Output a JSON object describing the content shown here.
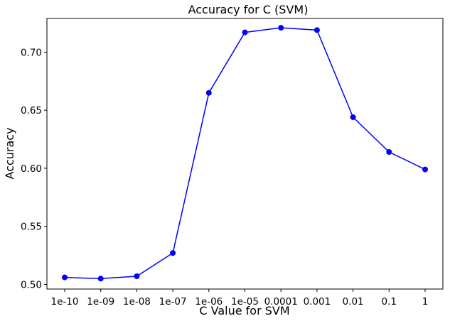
{
  "chart_data": {
    "type": "line",
    "title": "Accuracy for C (SVM)",
    "xlabel": "C Value for SVM",
    "ylabel": "Accuracy",
    "categories": [
      "1e-10",
      "1e-09",
      "1e-08",
      "1e-07",
      "1e-06",
      "1e-05",
      "0.0001",
      "0.001",
      "0.01",
      "0.1",
      "1"
    ],
    "series": [
      {
        "values": [
          0.506,
          0.505,
          0.507,
          0.527,
          0.665,
          0.717,
          0.721,
          0.719,
          0.644,
          0.614,
          0.599
        ]
      }
    ],
    "y_ticks": [
      "0.50",
      "0.55",
      "0.60",
      "0.65",
      "0.70"
    ],
    "ylim": [
      0.496,
      0.729
    ],
    "grid": false,
    "legend": "none",
    "colors": {
      "line": "#0000ff",
      "marker": "#0000ff"
    }
  }
}
